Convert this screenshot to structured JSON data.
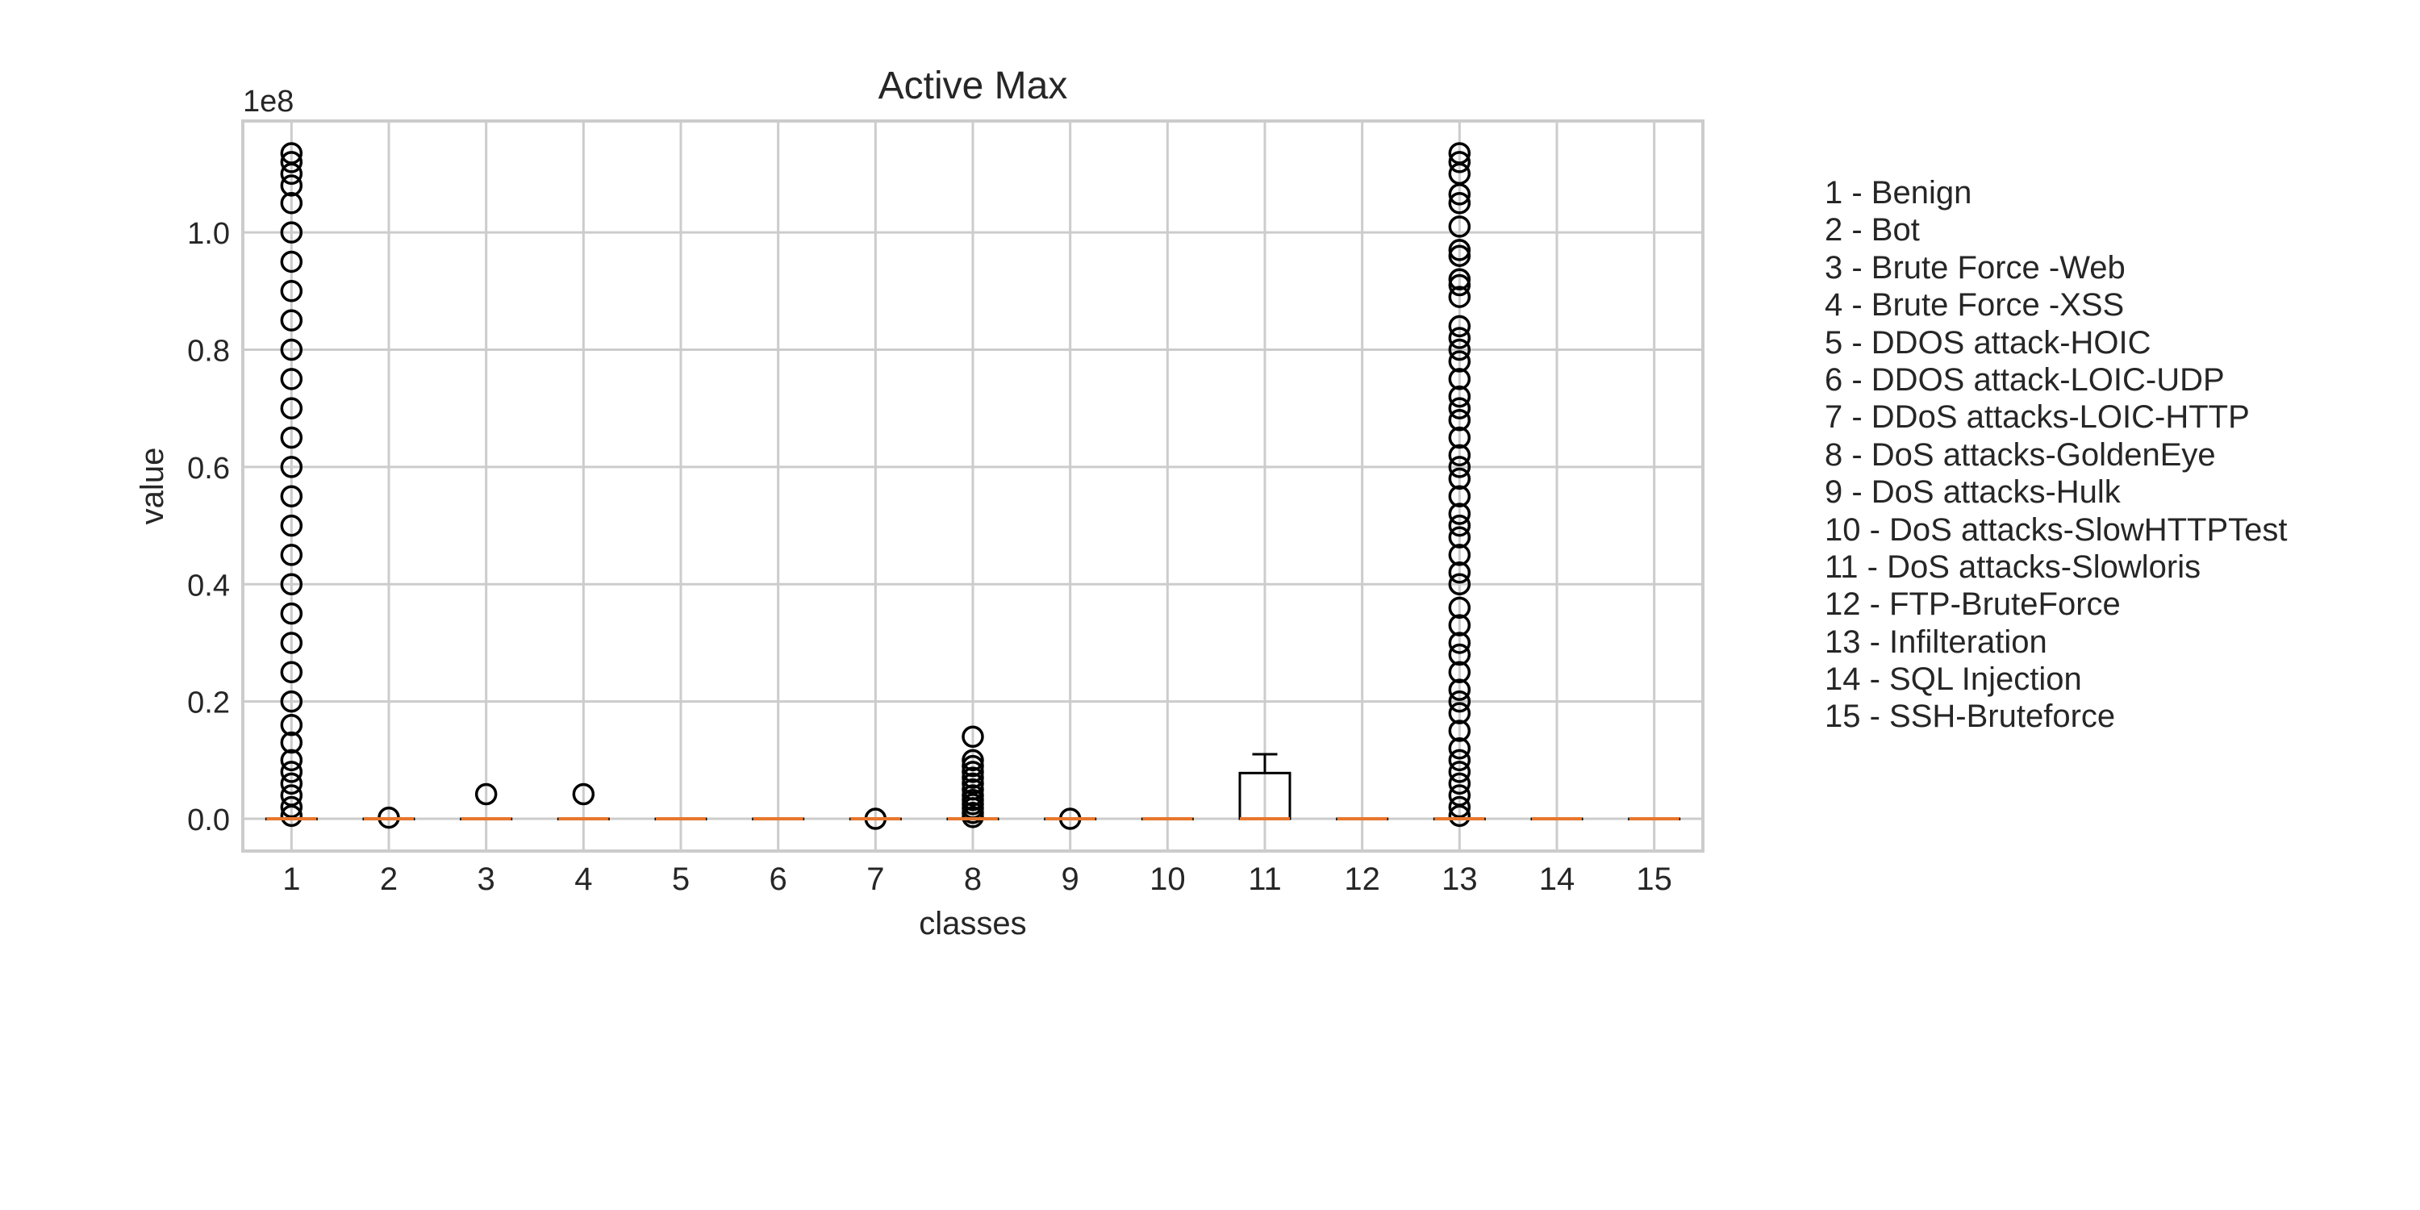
{
  "chart_data": {
    "type": "box",
    "title": "Active Max",
    "xlabel": "classes",
    "ylabel": "value",
    "y_scale_label": "1e8",
    "ylim": [
      -0.055,
      1.19
    ],
    "y_ticks": [
      0.0,
      0.2,
      0.4,
      0.6,
      0.8,
      1.0
    ],
    "y_tick_labels": [
      "0.0",
      "0.2",
      "0.4",
      "0.6",
      "0.8",
      "1.0"
    ],
    "grid": true,
    "categories": [
      "1",
      "2",
      "3",
      "4",
      "5",
      "6",
      "7",
      "8",
      "9",
      "10",
      "11",
      "12",
      "13",
      "14",
      "15"
    ],
    "boxes": [
      {
        "q1": 0,
        "median": 0,
        "q3": 0,
        "whisker_low": 0,
        "whisker_high": 0,
        "outliers": [
          0.005,
          0.02,
          0.04,
          0.06,
          0.08,
          0.1,
          0.13,
          0.16,
          0.2,
          0.25,
          0.3,
          0.35,
          0.4,
          0.45,
          0.5,
          0.55,
          0.6,
          0.65,
          0.7,
          0.75,
          0.8,
          0.85,
          0.9,
          0.95,
          1.0,
          1.05,
          1.08,
          1.1,
          1.12,
          1.135
        ]
      },
      {
        "q1": 0,
        "median": 0,
        "q3": 0,
        "whisker_low": 0,
        "whisker_high": 0,
        "outliers": [
          0.002
        ]
      },
      {
        "q1": 0,
        "median": 0,
        "q3": 0,
        "whisker_low": 0,
        "whisker_high": 0,
        "outliers": [
          0.042
        ]
      },
      {
        "q1": 0,
        "median": 0,
        "q3": 0,
        "whisker_low": 0,
        "whisker_high": 0,
        "outliers": [
          0.042
        ]
      },
      {
        "q1": 0,
        "median": 0,
        "q3": 0,
        "whisker_low": 0,
        "whisker_high": 0,
        "outliers": []
      },
      {
        "q1": 0,
        "median": 0,
        "q3": 0,
        "whisker_low": 0,
        "whisker_high": 0,
        "outliers": []
      },
      {
        "q1": 0,
        "median": 0,
        "q3": 0,
        "whisker_low": 0,
        "whisker_high": 0,
        "outliers": [
          0.0
        ]
      },
      {
        "q1": 0,
        "median": 0,
        "q3": 0,
        "whisker_low": 0,
        "whisker_high": 0,
        "outliers": [
          0.003,
          0.01,
          0.018,
          0.025,
          0.032,
          0.04,
          0.05,
          0.06,
          0.07,
          0.08,
          0.09,
          0.1,
          0.14
        ]
      },
      {
        "q1": 0,
        "median": 0,
        "q3": 0,
        "whisker_low": 0,
        "whisker_high": 0,
        "outliers": [
          0.0
        ]
      },
      {
        "q1": 0,
        "median": 0,
        "q3": 0,
        "whisker_low": 0,
        "whisker_high": 0,
        "outliers": []
      },
      {
        "q1": 0,
        "median": 0,
        "q3": 0.078,
        "whisker_low": 0,
        "whisker_high": 0.11,
        "outliers": []
      },
      {
        "q1": 0,
        "median": 0,
        "q3": 0,
        "whisker_low": 0,
        "whisker_high": 0,
        "outliers": []
      },
      {
        "q1": 0,
        "median": 0,
        "q3": 0,
        "whisker_low": 0,
        "whisker_high": 0,
        "outliers": [
          0.005,
          0.02,
          0.04,
          0.06,
          0.08,
          0.1,
          0.12,
          0.15,
          0.18,
          0.2,
          0.22,
          0.25,
          0.28,
          0.3,
          0.33,
          0.36,
          0.4,
          0.42,
          0.45,
          0.48,
          0.5,
          0.52,
          0.55,
          0.58,
          0.6,
          0.62,
          0.65,
          0.68,
          0.7,
          0.72,
          0.75,
          0.78,
          0.8,
          0.82,
          0.84,
          0.89,
          0.91,
          0.92,
          0.96,
          0.97,
          1.01,
          1.05,
          1.065,
          1.1,
          1.12,
          1.135
        ]
      },
      {
        "q1": 0,
        "median": 0,
        "q3": 0,
        "whisker_low": 0,
        "whisker_high": 0,
        "outliers": []
      },
      {
        "q1": 0,
        "median": 0,
        "q3": 0,
        "whisker_low": 0,
        "whisker_high": 0,
        "outliers": []
      }
    ],
    "legend": [
      "1 - Benign",
      "2 - Bot",
      "3 - Brute Force -Web",
      "4 - Brute Force -XSS",
      "5 - DDOS attack-HOIC",
      "6 - DDOS attack-LOIC-UDP",
      "7 - DDoS attacks-LOIC-HTTP",
      "8 - DoS attacks-GoldenEye",
      "9 - DoS attacks-Hulk",
      "10 - DoS attacks-SlowHTTPTest",
      "11 - DoS attacks-Slowloris",
      "12 - FTP-BruteForce",
      "13 - Infilteration",
      "14 - SQL Injection",
      "15 - SSH-Bruteforce"
    ],
    "legend_placement": "right",
    "colors": {
      "box": "#000000",
      "median": "#e8772e",
      "grid": "#cccccc",
      "axes": "#cccccc",
      "text": "#262626"
    }
  }
}
